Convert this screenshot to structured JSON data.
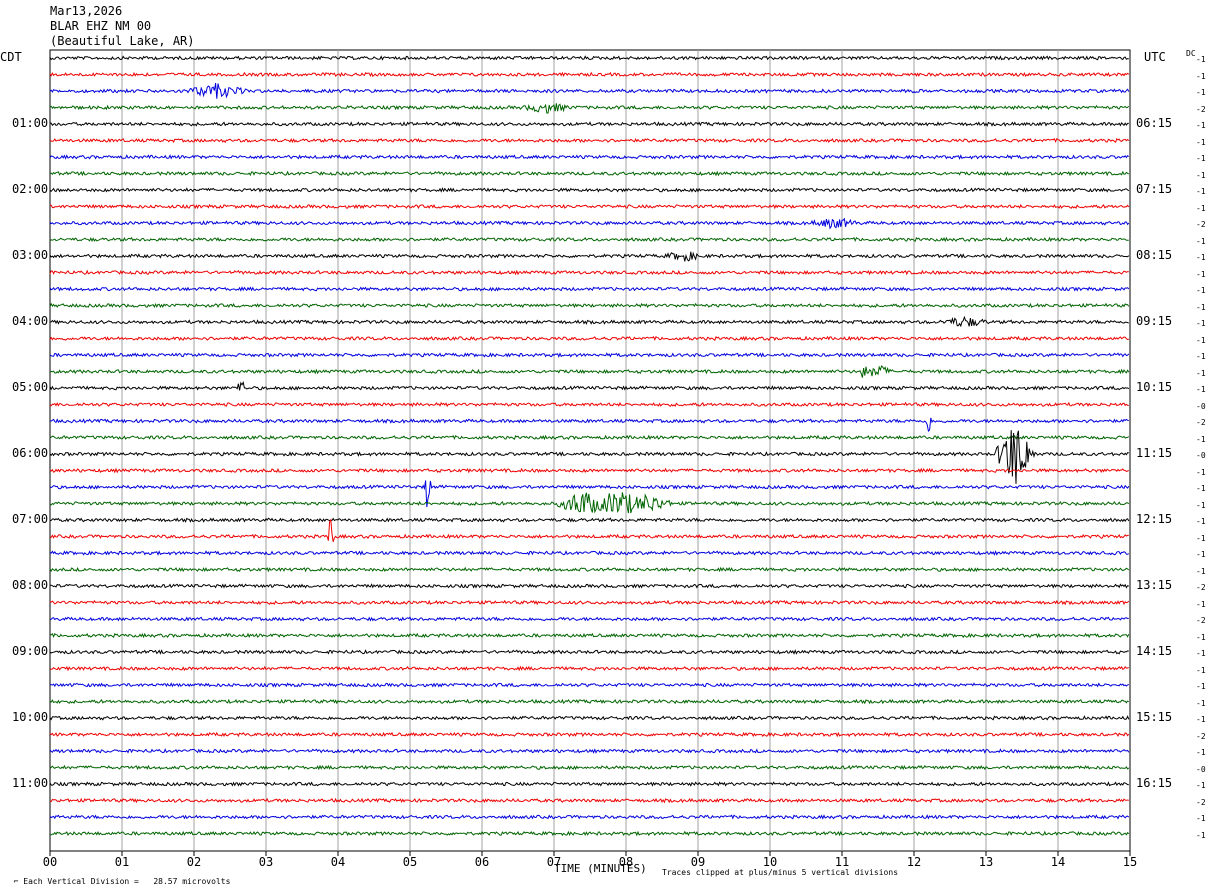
{
  "header": {
    "date": "Mar13,2026",
    "station": "BLAR EHZ NM 00",
    "location": "(Beautiful Lake, AR)",
    "left_tz": "CDT",
    "right_tz": "UTC",
    "dc_label": "DC"
  },
  "footer": {
    "scale": "Each Vertical Division =   28.57 microvolts",
    "xlabel": "TIME (MINUTES)",
    "clip_note": "Traces clipped at plus/minus 5 vertical divisions"
  },
  "colors": {
    "black": "#000000",
    "red": "#ee0000",
    "blue": "#0000dd",
    "green": "#006400",
    "grid": "#a0a0a0"
  },
  "chart_data": {
    "type": "line",
    "traces_per_hour": 4,
    "minutes_per_trace": 15,
    "trace_colors": [
      "black",
      "red",
      "blue",
      "green"
    ],
    "xlabel": "TIME (MINUTES)",
    "xlim": [
      0,
      15
    ],
    "x_ticks": [
      "00",
      "01",
      "02",
      "03",
      "04",
      "05",
      "06",
      "07",
      "08",
      "09",
      "10",
      "11",
      "12",
      "13",
      "14",
      "15"
    ],
    "left_time_labels": [
      {
        "trace": 4,
        "label": "01:00"
      },
      {
        "trace": 8,
        "label": "02:00"
      },
      {
        "trace": 12,
        "label": "03:00"
      },
      {
        "trace": 16,
        "label": "04:00"
      },
      {
        "trace": 20,
        "label": "05:00"
      },
      {
        "trace": 24,
        "label": "06:00"
      },
      {
        "trace": 28,
        "label": "07:00"
      },
      {
        "trace": 32,
        "label": "08:00"
      },
      {
        "trace": 36,
        "label": "09:00"
      },
      {
        "trace": 40,
        "label": "10:00"
      },
      {
        "trace": 44,
        "label": "11:00"
      }
    ],
    "right_time_labels": [
      {
        "trace": 4,
        "label": "06:15"
      },
      {
        "trace": 8,
        "label": "07:15"
      },
      {
        "trace": 12,
        "label": "08:15"
      },
      {
        "trace": 16,
        "label": "09:15"
      },
      {
        "trace": 20,
        "label": "10:15"
      },
      {
        "trace": 24,
        "label": "11:15"
      },
      {
        "trace": 28,
        "label": "12:15"
      },
      {
        "trace": 32,
        "label": "13:15"
      },
      {
        "trace": 36,
        "label": "14:15"
      },
      {
        "trace": 40,
        "label": "15:15"
      },
      {
        "trace": 44,
        "label": "16:15"
      }
    ],
    "dc_offsets": [
      "-1",
      "-1",
      "-1",
      "-2",
      "-1",
      "-1",
      "-1",
      "-1",
      "-1",
      "-1",
      "-2",
      "-1",
      "-1",
      "-1",
      "-1",
      "-1",
      "-1",
      "-1",
      "-1",
      "-1",
      "-1",
      "-0",
      "-2",
      "-1",
      "-0",
      "-1",
      "-1",
      "-1",
      "-1",
      "-1",
      "-1",
      "-1",
      "-2",
      "-1",
      "-2",
      "-1",
      "-1",
      "-1",
      "-1",
      "-1",
      "-1",
      "-2",
      "-1",
      "-0",
      "-1",
      "-2",
      "-1",
      "-1"
    ],
    "events": [
      {
        "trace": 2,
        "minute": 2.3,
        "amp": 7,
        "dur": 0.5
      },
      {
        "trace": 3,
        "minute": 6.9,
        "amp": 5,
        "dur": 0.4
      },
      {
        "trace": 10,
        "minute": 10.9,
        "amp": 5,
        "dur": 0.4
      },
      {
        "trace": 12,
        "minute": 8.8,
        "amp": 5,
        "dur": 0.3
      },
      {
        "trace": 16,
        "minute": 12.7,
        "amp": 5,
        "dur": 0.4
      },
      {
        "trace": 19,
        "minute": 11.3,
        "amp": 12,
        "dur": 0.05
      },
      {
        "trace": 19,
        "minute": 11.5,
        "amp": 7,
        "dur": 0.2
      },
      {
        "trace": 20,
        "minute": 2.65,
        "amp": 16,
        "dur": 0.05
      },
      {
        "trace": 22,
        "minute": 12.2,
        "amp": 14,
        "dur": 0.05
      },
      {
        "trace": 24,
        "minute": 13.4,
        "amp": 35,
        "dur": 0.3
      },
      {
        "trace": 26,
        "minute": 5.25,
        "amp": 44,
        "dur": 0.04
      },
      {
        "trace": 27,
        "minute": 7.4,
        "amp": 13,
        "dur": 0.4
      },
      {
        "trace": 27,
        "minute": 7.9,
        "amp": 13,
        "dur": 0.5
      },
      {
        "trace": 27,
        "minute": 8.3,
        "amp": 9,
        "dur": 0.4
      },
      {
        "trace": 29,
        "minute": 3.9,
        "amp": 34,
        "dur": 0.04
      }
    ]
  }
}
